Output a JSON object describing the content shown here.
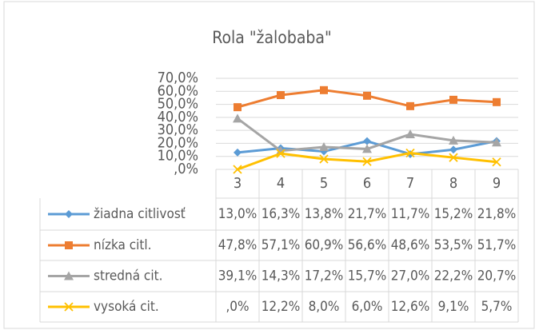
{
  "chart_data": {
    "type": "line",
    "title": "Rola \"žalobaba\"",
    "categories": [
      "3",
      "4",
      "5",
      "6",
      "7",
      "8",
      "9"
    ],
    "series": [
      {
        "name": "žiadna citlivosť",
        "color": "#5b9bd5",
        "marker": "diamond",
        "values": [
          13.0,
          16.3,
          13.8,
          21.7,
          11.7,
          15.2,
          21.8
        ],
        "value_labels": [
          "13,0%",
          "16,3%",
          "13,8%",
          "21,7%",
          "11,7%",
          "15,2%",
          "21,8%"
        ]
      },
      {
        "name": "nízka citl.",
        "color": "#ed7d31",
        "marker": "square",
        "values": [
          47.8,
          57.1,
          60.9,
          56.6,
          48.6,
          53.5,
          51.7
        ],
        "value_labels": [
          "47,8%",
          "57,1%",
          "60,9%",
          "56,6%",
          "48,6%",
          "53,5%",
          "51,7%"
        ]
      },
      {
        "name": "stredná cit.",
        "color": "#a5a5a5",
        "marker": "triangle",
        "values": [
          39.1,
          14.3,
          17.2,
          15.7,
          27.0,
          22.2,
          20.7
        ],
        "value_labels": [
          "39,1%",
          "14,3%",
          "17,2%",
          "15,7%",
          "27,0%",
          "22,2%",
          "20,7%"
        ]
      },
      {
        "name": "vysoká cit.",
        "color": "#ffc000",
        "marker": "x",
        "values": [
          0,
          12.2,
          8.0,
          6.0,
          12.6,
          9.1,
          5.7
        ],
        "value_labels": [
          ",0%",
          "12,2%",
          "8,0%",
          "6,0%",
          "12,6%",
          "9,1%",
          "5,7%"
        ]
      }
    ],
    "ylim": [
      0,
      70
    ],
    "yticks": [
      {
        "value": 0,
        "label": ",0%"
      },
      {
        "value": 10,
        "label": "10,0%"
      },
      {
        "value": 20,
        "label": "20,0%"
      },
      {
        "value": 30,
        "label": "30,0%"
      },
      {
        "value": 40,
        "label": "40,0%"
      },
      {
        "value": 50,
        "label": "50,0%"
      },
      {
        "value": 60,
        "label": "60,0%"
      },
      {
        "value": 70,
        "label": "70,0%"
      }
    ],
    "grid": true
  }
}
